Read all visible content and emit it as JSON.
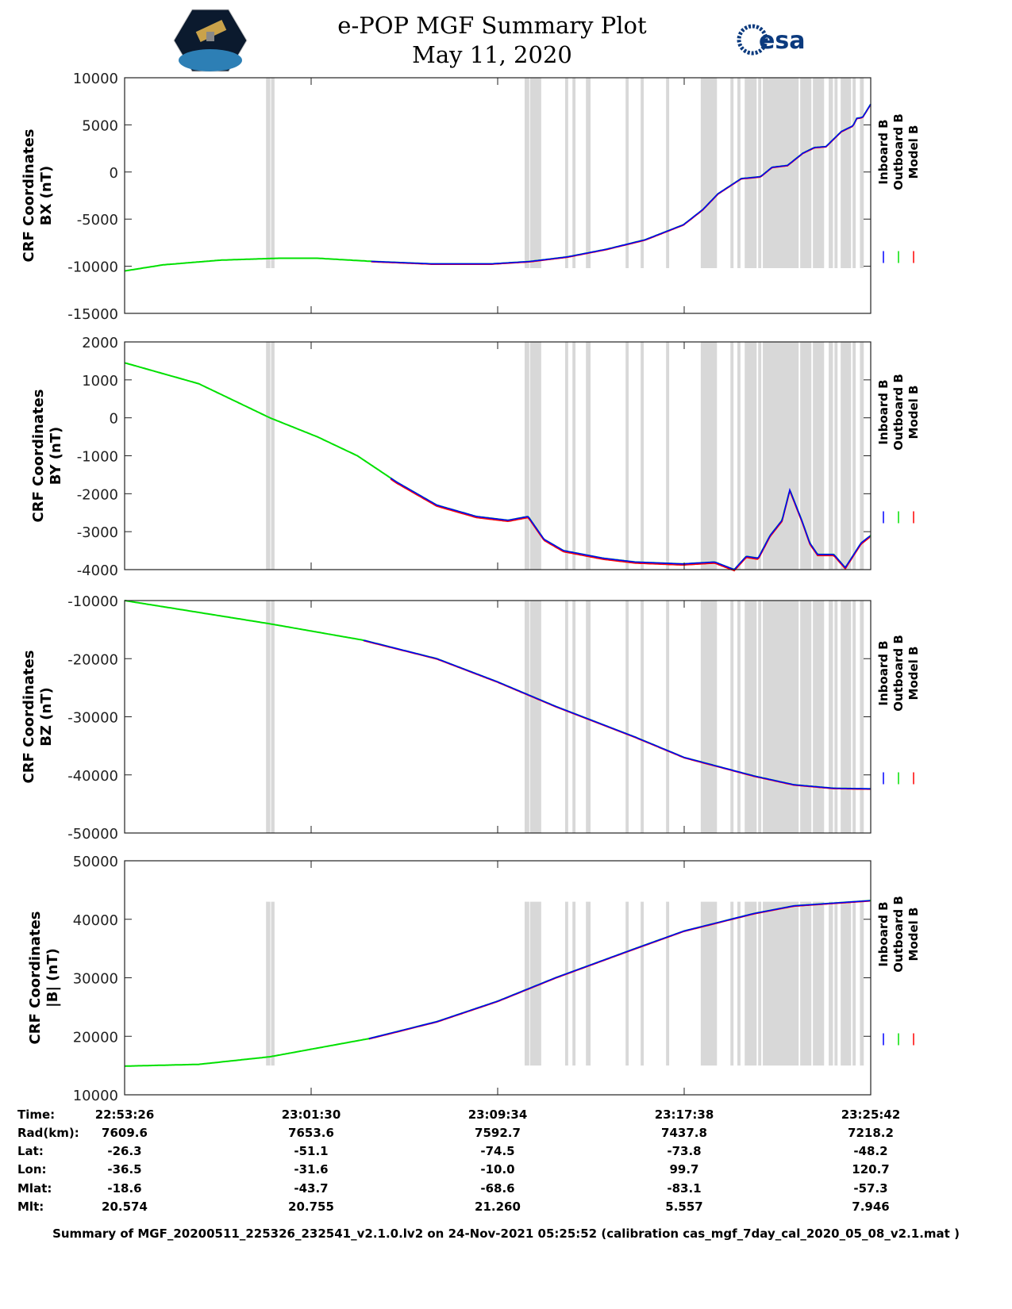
{
  "header": {
    "title_line1": "e-POP MGF Summary Plot",
    "title_line2": "May 11, 2020",
    "logo_text": "CASSIOPE",
    "esa_logo_text": "esa"
  },
  "chart_data": {
    "type": "line",
    "x_unit": "seconds since 22:53:26",
    "xlim": [
      0,
      1936
    ],
    "x_ticks": [
      0,
      484,
      968,
      1452,
      1936
    ],
    "legend": [
      "Inboard B",
      "Outboard B",
      "Model B"
    ],
    "legend_placement": "right",
    "colors": {
      "Inboard B": "#0000ff",
      "Outboard B": "#00e000",
      "Model B": "#ff0000",
      "band": "#d8d8d8"
    },
    "gap_bands": [
      [
        367,
        378
      ],
      [
        380,
        389
      ],
      [
        1038,
        1050
      ],
      [
        1052,
        1081
      ],
      [
        1143,
        1151
      ],
      [
        1162,
        1170
      ],
      [
        1197,
        1209
      ],
      [
        1300,
        1308
      ],
      [
        1339,
        1347
      ],
      [
        1405,
        1413
      ],
      [
        1495,
        1537
      ],
      [
        1572,
        1580
      ],
      [
        1590,
        1598
      ],
      [
        1609,
        1640
      ],
      [
        1644,
        1652
      ],
      [
        1656,
        1749
      ],
      [
        1753,
        1782
      ],
      [
        1786,
        1815
      ],
      [
        1827,
        1838
      ],
      [
        1842,
        1850
      ],
      [
        1858,
        1885
      ],
      [
        1889,
        1897
      ],
      [
        1908,
        1918
      ]
    ],
    "panels": [
      {
        "ylabel1": "CRF Coordinates",
        "ylabel2": "BX (nT)",
        "ylim": [
          -15000,
          10000
        ],
        "yticks": [
          10000,
          5000,
          0,
          -5000,
          -10000,
          -15000
        ],
        "band_range": [
          -10200,
          10000
        ],
        "blue_start": 640,
        "series": [
          [
            0,
            -10500
          ],
          [
            100,
            -9850
          ],
          [
            250,
            -9350
          ],
          [
            400,
            -9150
          ],
          [
            500,
            -9150
          ],
          [
            650,
            -9500
          ],
          [
            800,
            -9750
          ],
          [
            950,
            -9750
          ],
          [
            1050,
            -9500
          ],
          [
            1150,
            -9000
          ],
          [
            1250,
            -8200
          ],
          [
            1350,
            -7200
          ],
          [
            1450,
            -5600
          ],
          [
            1500,
            -4000
          ],
          [
            1540,
            -2300
          ],
          [
            1600,
            -700
          ],
          [
            1650,
            -500
          ],
          [
            1680,
            500
          ],
          [
            1720,
            700
          ],
          [
            1760,
            2000
          ],
          [
            1790,
            2600
          ],
          [
            1820,
            2700
          ],
          [
            1860,
            4300
          ],
          [
            1890,
            4900
          ],
          [
            1900,
            5700
          ],
          [
            1915,
            5800
          ],
          [
            1936,
            7200
          ]
        ]
      },
      {
        "ylabel1": "CRF Coordinates",
        "ylabel2": "BY (nT)",
        "ylim": [
          -4000,
          2000
        ],
        "yticks": [
          2000,
          1000,
          0,
          -1000,
          -2000,
          -3000,
          -4000
        ],
        "band_range": [
          -4000,
          2000
        ],
        "blue_start": 690,
        "series": [
          [
            0,
            1450
          ],
          [
            192,
            900
          ],
          [
            295,
            400
          ],
          [
            377,
            0
          ],
          [
            500,
            -500
          ],
          [
            604,
            -1000
          ],
          [
            707,
            -1700
          ],
          [
            810,
            -2300
          ],
          [
            913,
            -2600
          ],
          [
            995,
            -2700
          ],
          [
            1047,
            -2600
          ],
          [
            1088,
            -3200
          ],
          [
            1139,
            -3500
          ],
          [
            1242,
            -3700
          ],
          [
            1325,
            -3800
          ],
          [
            1448,
            -3850
          ],
          [
            1531,
            -3800
          ],
          [
            1582,
            -4000
          ],
          [
            1613,
            -3650
          ],
          [
            1644,
            -3700
          ],
          [
            1675,
            -3100
          ],
          [
            1706,
            -2700
          ],
          [
            1726,
            -1900
          ],
          [
            1757,
            -2700
          ],
          [
            1778,
            -3300
          ],
          [
            1798,
            -3600
          ],
          [
            1840,
            -3600
          ],
          [
            1870,
            -3950
          ],
          [
            1911,
            -3300
          ],
          [
            1936,
            -3100
          ]
        ]
      },
      {
        "ylabel1": "CRF Coordinates",
        "ylabel2": "BZ (nT)",
        "ylim": [
          -50000,
          -10000
        ],
        "yticks": [
          -10000,
          -20000,
          -30000,
          -40000,
          -50000
        ],
        "band_range": [
          -50000,
          -10000
        ],
        "blue_start": 620,
        "series": [
          [
            0,
            -10000
          ],
          [
            377,
            -14000
          ],
          [
            618,
            -16800
          ],
          [
            810,
            -20000
          ],
          [
            968,
            -24000
          ],
          [
            1118,
            -28200
          ],
          [
            1325,
            -33500
          ],
          [
            1452,
            -37000
          ],
          [
            1634,
            -40200
          ],
          [
            1737,
            -41700
          ],
          [
            1840,
            -42300
          ],
          [
            1936,
            -42400
          ]
        ]
      },
      {
        "ylabel1": "CRF Coordinates",
        "ylabel2": "|B| (nT)",
        "ylim": [
          10000,
          50000
        ],
        "yticks": [
          50000,
          40000,
          30000,
          20000,
          10000
        ],
        "band_range": [
          15000,
          43000
        ],
        "blue_start": 634,
        "series": [
          [
            0,
            14900
          ],
          [
            192,
            15200
          ],
          [
            377,
            16500
          ],
          [
            634,
            19600
          ],
          [
            810,
            22500
          ],
          [
            968,
            26000
          ],
          [
            1118,
            30000
          ],
          [
            1325,
            35000
          ],
          [
            1452,
            38000
          ],
          [
            1634,
            41000
          ],
          [
            1737,
            42300
          ],
          [
            1936,
            43200
          ]
        ]
      }
    ]
  },
  "table": {
    "labels": [
      "Time:",
      "Rad(km):",
      "Lat:",
      "Lon:",
      "Mlat:",
      "Mlt:"
    ],
    "columns": [
      [
        "22:53:26",
        "7609.6",
        "-26.3",
        "-36.5",
        "-18.6",
        "20.574"
      ],
      [
        "23:01:30",
        "7653.6",
        "-51.1",
        "-31.6",
        "-43.7",
        "20.755"
      ],
      [
        "23:09:34",
        "7592.7",
        "-74.5",
        "-10.0",
        "-68.6",
        "21.260"
      ],
      [
        "23:17:38",
        "7437.8",
        "-73.8",
        "99.7",
        "-83.1",
        "5.557"
      ],
      [
        "23:25:42",
        "7218.2",
        "-48.2",
        "120.7",
        "-57.3",
        "7.946"
      ]
    ]
  },
  "footer": "Summary of MGF_20200511_225326_232541_v2.1.0.lv2 on 24-Nov-2021 05:25:52 (calibration cas_mgf_7day_cal_2020_05_08_v2.1.mat )"
}
